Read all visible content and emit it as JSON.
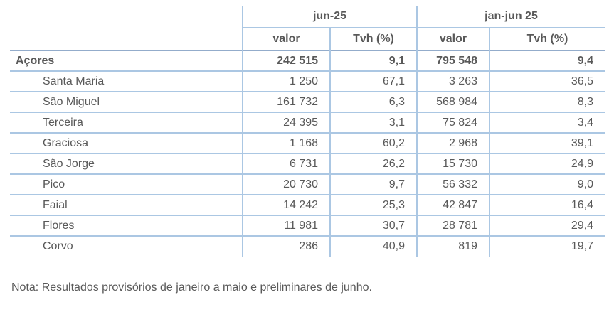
{
  "table": {
    "col_groups": [
      {
        "label": "jun-25"
      },
      {
        "label": "jan-jun 25"
      }
    ],
    "sub_headers": [
      "valor",
      "Tvh (%)",
      "valor",
      "Tvh (%)"
    ],
    "total_row": {
      "label": "Açores",
      "values": [
        "242 515",
        "9,1",
        "795 548",
        "9,4"
      ]
    },
    "rows": [
      {
        "label": "Santa Maria",
        "values": [
          "1 250",
          "67,1",
          "3 263",
          "36,5"
        ]
      },
      {
        "label": "São Miguel",
        "values": [
          "161 732",
          "6,3",
          "568 984",
          "8,3"
        ]
      },
      {
        "label": "Terceira",
        "values": [
          "24 395",
          "3,1",
          "75 824",
          "3,4"
        ]
      },
      {
        "label": "Graciosa",
        "values": [
          "1 168",
          "60,2",
          "2 968",
          "39,1"
        ]
      },
      {
        "label": "São Jorge",
        "values": [
          "6 731",
          "26,2",
          "15 730",
          "24,9"
        ]
      },
      {
        "label": "Pico",
        "values": [
          "20 730",
          "9,7",
          "56 332",
          "9,0"
        ]
      },
      {
        "label": "Faial",
        "values": [
          "14 242",
          "25,3",
          "42 847",
          "16,4"
        ]
      },
      {
        "label": "Flores",
        "values": [
          "11 981",
          "30,7",
          "28 781",
          "29,4"
        ]
      },
      {
        "label": "Corvo",
        "values": [
          "286",
          "40,9",
          "819",
          "19,7"
        ]
      }
    ],
    "note": "Nota: Resultados provisórios de janeiro a maio e preliminares de junho."
  },
  "colors": {
    "border_light": "#abc7e3",
    "border_strong": "#93accb",
    "text": "#595959"
  }
}
